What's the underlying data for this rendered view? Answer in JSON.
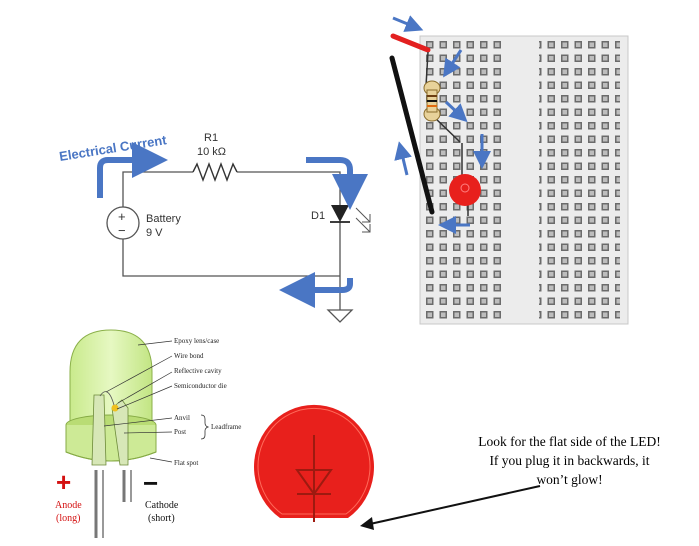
{
  "schematic": {
    "current_label": "Electrical Current",
    "resistor_ref": "R1",
    "resistor_value": "10 kΩ",
    "battery_label": "Battery",
    "battery_voltage": "9 V",
    "diode_ref": "D1",
    "battery_plus": "+",
    "battery_minus": "−"
  },
  "led_diagram": {
    "labels": {
      "epoxy": "Epoxy lens/case",
      "wire_bond": "Wire bond",
      "reflective_cavity": "Reflective cavity",
      "semiconductor_die": "Semiconductor die",
      "anvil": "Anvil",
      "post": "Post",
      "leadframe": "Leadframe",
      "flat_spot": "Flat spot"
    },
    "anode_sign": "+",
    "anode_label": "Anode",
    "anode_sub": "(long)",
    "cathode_sign": "−",
    "cathode_label": "Cathode",
    "cathode_sub": "(short)"
  },
  "note": {
    "line1": "Look for the flat side of the LED!",
    "line2": "If you plug it in backwards, it",
    "line3": "won’t glow!"
  },
  "colors": {
    "current_arrow": "#4a76c4",
    "led_red": "#e8201c",
    "rail_red": "#e32020",
    "breadboard_bg": "#ececec",
    "led_green": "#d8f2a8"
  }
}
